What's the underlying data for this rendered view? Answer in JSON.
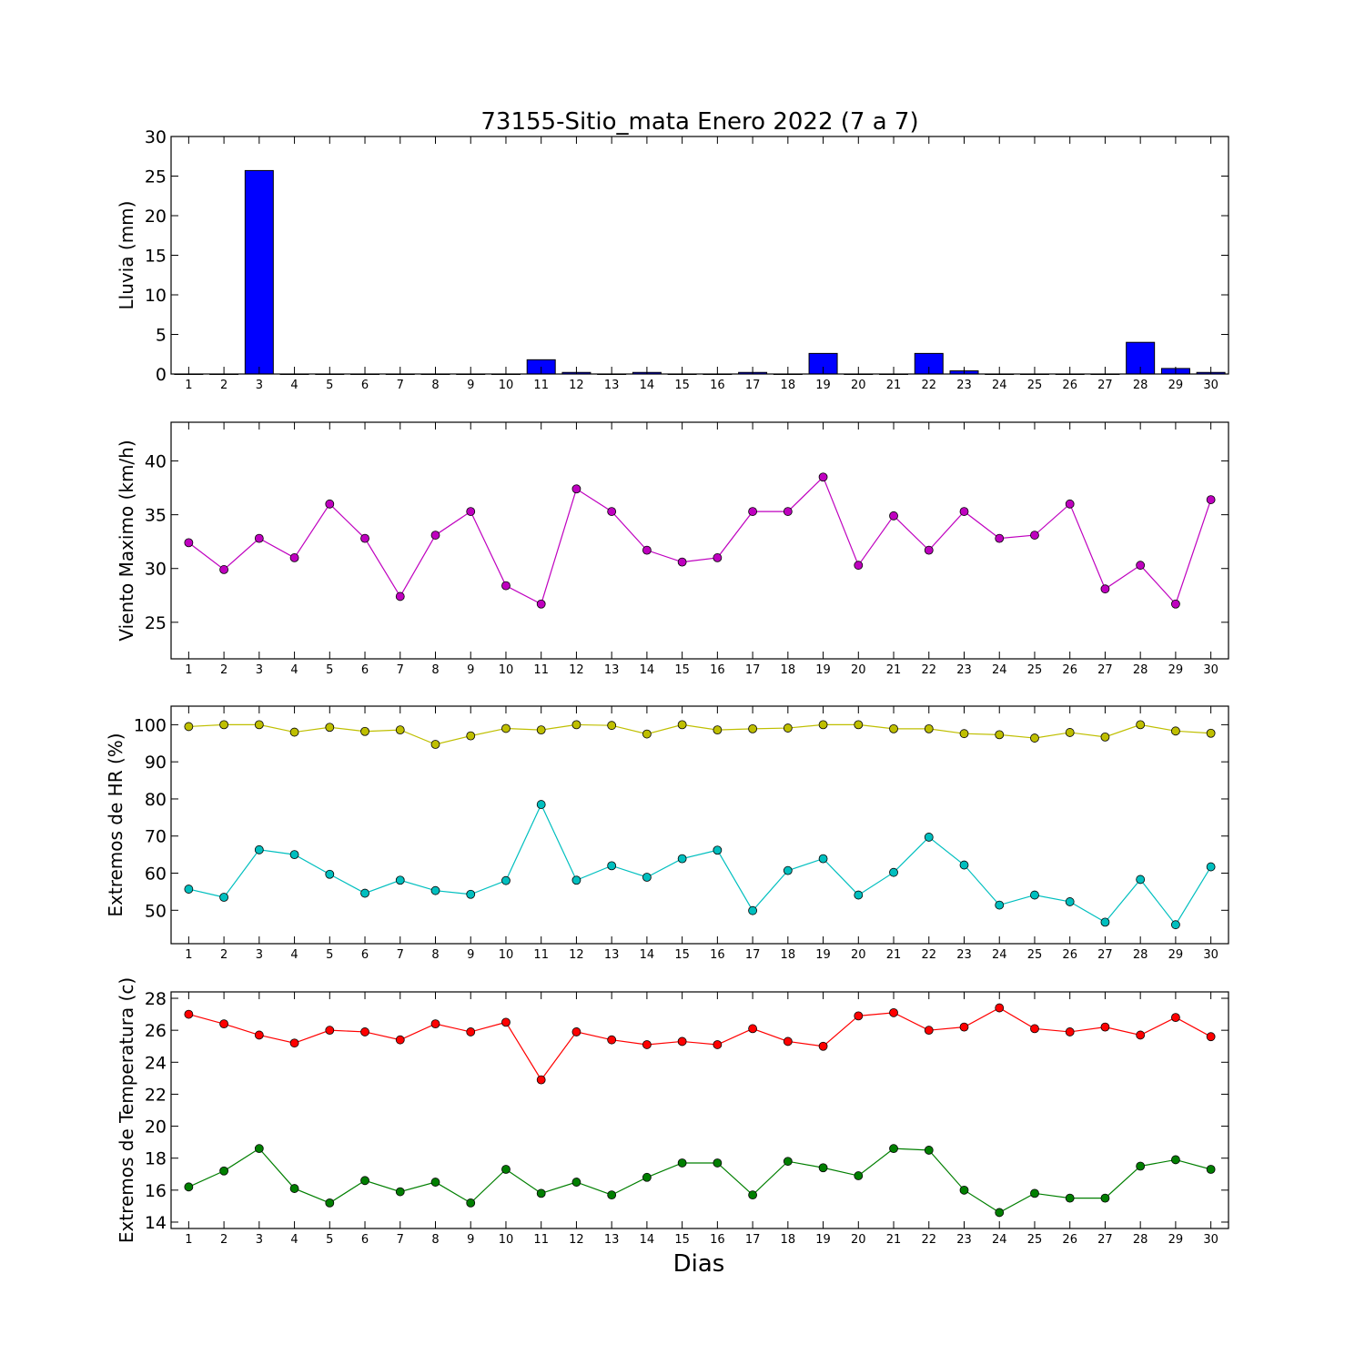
{
  "figure": {
    "title": "73155-Sitio_mata Enero 2022  (7 a 7)",
    "xlabel": "Dias"
  },
  "chart_data": [
    {
      "type": "bar",
      "ylabel": "Lluvia (mm)",
      "ylim": [
        0,
        30
      ],
      "yticks": [
        0,
        5,
        10,
        15,
        20,
        25,
        30
      ],
      "x": [
        1,
        2,
        3,
        4,
        5,
        6,
        7,
        8,
        9,
        10,
        11,
        12,
        13,
        14,
        15,
        16,
        17,
        18,
        19,
        20,
        21,
        22,
        23,
        24,
        25,
        26,
        27,
        28,
        29,
        30
      ],
      "series": [
        {
          "values": [
            0,
            0,
            25.7,
            0,
            0,
            0,
            0,
            0,
            0,
            0,
            1.8,
            0.2,
            0,
            0.2,
            0,
            0,
            0.2,
            0,
            2.6,
            0,
            0,
            2.6,
            0.4,
            0,
            0,
            0,
            0,
            4.0,
            0.7,
            0.2
          ],
          "color": "#0000ff"
        }
      ]
    },
    {
      "type": "line",
      "ylabel": "Viento Maximo (km/h)",
      "ylim": [
        21.6,
        43.6
      ],
      "yticks": [
        25,
        30,
        35,
        40
      ],
      "x": [
        1,
        2,
        3,
        4,
        5,
        6,
        7,
        8,
        9,
        10,
        11,
        12,
        13,
        14,
        15,
        16,
        17,
        18,
        19,
        20,
        21,
        22,
        23,
        24,
        25,
        26,
        27,
        28,
        29,
        30
      ],
      "series": [
        {
          "values": [
            32.4,
            29.9,
            32.8,
            31.0,
            36.0,
            32.8,
            27.4,
            33.1,
            35.3,
            28.4,
            26.7,
            37.4,
            35.3,
            31.7,
            30.6,
            31.0,
            35.3,
            35.3,
            38.5,
            30.3,
            34.9,
            31.7,
            35.3,
            32.8,
            33.1,
            36.0,
            28.1,
            30.3,
            26.7,
            36.4
          ],
          "color": "#bf00bf"
        }
      ]
    },
    {
      "type": "line",
      "ylabel": "Extremos de HR (%)",
      "ylim": [
        41,
        105
      ],
      "yticks": [
        50,
        60,
        70,
        80,
        90,
        100
      ],
      "x": [
        1,
        2,
        3,
        4,
        5,
        6,
        7,
        8,
        9,
        10,
        11,
        12,
        13,
        14,
        15,
        16,
        17,
        18,
        19,
        20,
        21,
        22,
        23,
        24,
        25,
        26,
        27,
        28,
        29,
        30
      ],
      "series": [
        {
          "values": [
            99.5,
            100,
            100,
            98,
            99.3,
            98.2,
            98.6,
            94.7,
            97,
            99,
            98.6,
            100,
            99.8,
            97.5,
            100,
            98.6,
            98.9,
            99.1,
            100,
            100,
            98.9,
            98.9,
            97.6,
            97.3,
            96.4,
            97.9,
            96.7,
            100,
            98.3,
            97.7
          ],
          "color": "#bfbf00"
        },
        {
          "values": [
            55.7,
            53.5,
            66.3,
            65,
            59.7,
            54.6,
            58.1,
            55.3,
            54.3,
            58,
            78.5,
            58.1,
            62,
            58.9,
            63.9,
            66.2,
            49.9,
            60.7,
            63.9,
            54.1,
            60.2,
            69.7,
            62.2,
            51.4,
            54.1,
            52.3,
            46.8,
            58.3,
            46.1,
            61.7
          ],
          "color": "#00bfbf"
        }
      ]
    },
    {
      "type": "line",
      "ylabel": "Extremos de Temperatura (c)",
      "ylim": [
        13.6,
        28.4
      ],
      "yticks": [
        14,
        16,
        18,
        20,
        22,
        24,
        26,
        28
      ],
      "x": [
        1,
        2,
        3,
        4,
        5,
        6,
        7,
        8,
        9,
        10,
        11,
        12,
        13,
        14,
        15,
        16,
        17,
        18,
        19,
        20,
        21,
        22,
        23,
        24,
        25,
        26,
        27,
        28,
        29,
        30
      ],
      "series": [
        {
          "values": [
            27.0,
            26.4,
            25.7,
            25.2,
            26.0,
            25.9,
            25.4,
            26.4,
            25.9,
            26.5,
            22.9,
            25.9,
            25.4,
            25.1,
            25.3,
            25.1,
            26.1,
            25.3,
            25.0,
            26.9,
            27.1,
            26.0,
            26.2,
            27.4,
            26.1,
            25.9,
            26.2,
            25.7,
            26.8,
            25.6
          ],
          "color": "#ff0000"
        },
        {
          "values": [
            16.2,
            17.2,
            18.6,
            16.1,
            15.2,
            16.6,
            15.9,
            16.5,
            15.2,
            17.3,
            15.8,
            16.5,
            15.7,
            16.8,
            17.7,
            17.7,
            15.7,
            17.8,
            17.4,
            16.9,
            18.6,
            18.5,
            16.0,
            14.6,
            15.8,
            15.5,
            15.5,
            17.5,
            17.9,
            17.3
          ],
          "color": "#007f00"
        }
      ]
    }
  ]
}
